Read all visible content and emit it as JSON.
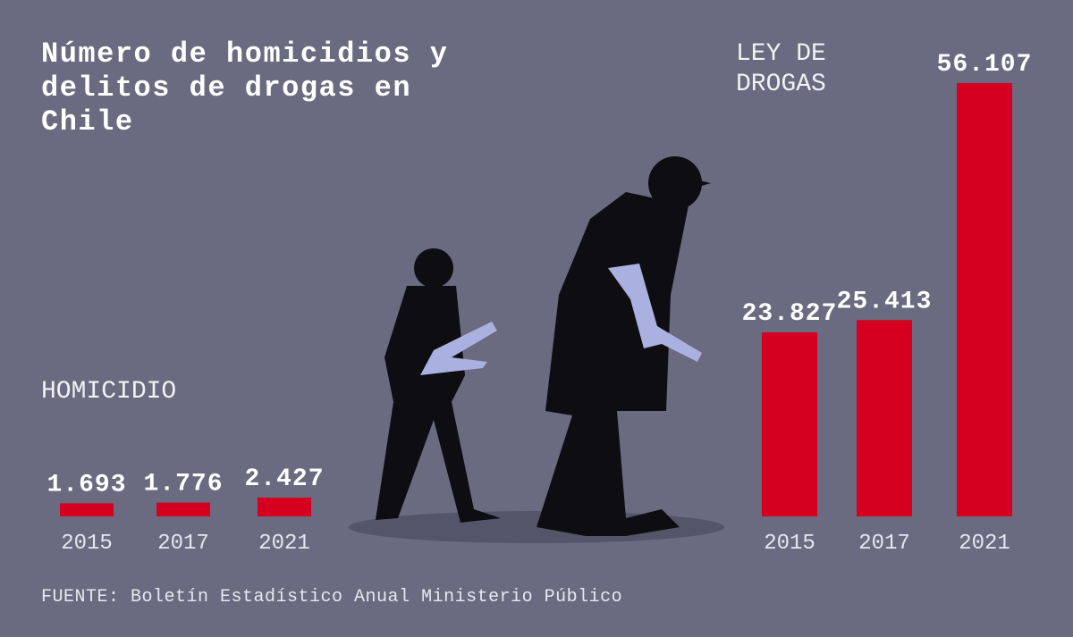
{
  "title": "Número de homicidios y delitos de drogas en Chile",
  "source": "FUENTE: Boletín Estadístico Anual Ministerio Público",
  "chart_data": [
    {
      "type": "bar",
      "title": "HOMICIDIO",
      "categories": [
        "2015",
        "2017",
        "2021"
      ],
      "values": [
        1693,
        1776,
        2427
      ],
      "value_labels": [
        "1.693",
        "1.776",
        "2.427"
      ],
      "color": "#d5001f"
    },
    {
      "type": "bar",
      "title": "LEY DE DROGAS",
      "categories": [
        "2015",
        "2017",
        "2021"
      ],
      "values": [
        23827,
        25413,
        56107
      ],
      "value_labels": [
        "23.827",
        "25.413",
        "56.107"
      ],
      "color": "#d5001f"
    }
  ]
}
